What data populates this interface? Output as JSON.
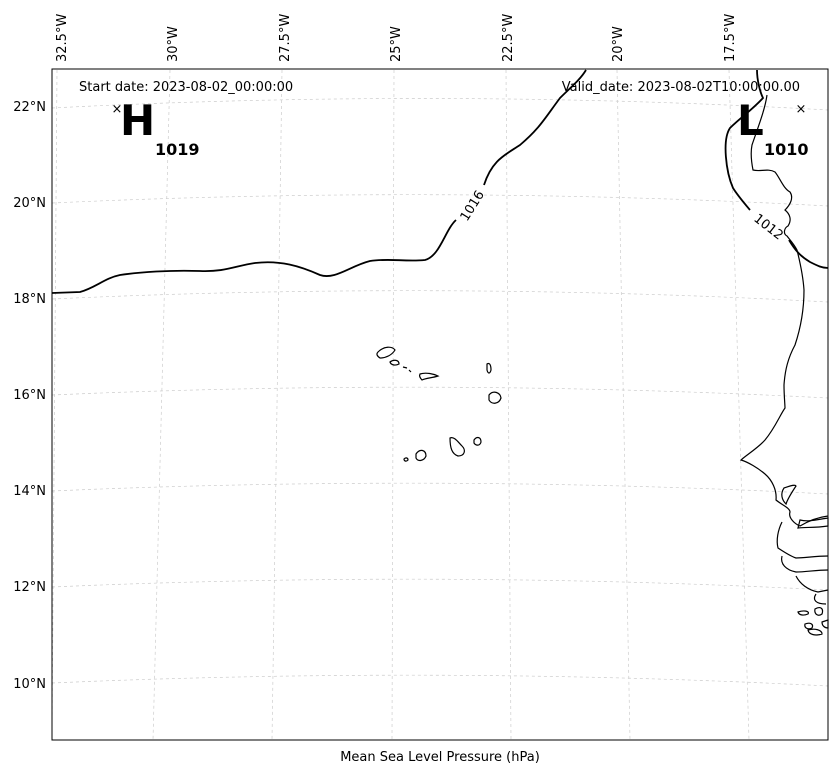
{
  "header": {
    "start_date": "Start date: 2023-08-02_00:00:00",
    "valid_date": "Valid_date: 2023-08-02T10:00:00.00"
  },
  "footer": {
    "caption": "Mean Sea Level Pressure (hPa)"
  },
  "longitude_labels": [
    "32.5°W",
    "30°W",
    "27.5°W",
    "25°W",
    "22.5°W",
    "20°W",
    "17.5°W"
  ],
  "latitude_labels": [
    "22°N",
    "20°N",
    "18°N",
    "16°N",
    "14°N",
    "12°N",
    "10°N"
  ],
  "pressure_centers": {
    "high": {
      "letter": "H",
      "value": "1019",
      "marker": "×"
    },
    "low": {
      "letter": "L",
      "value": "1010",
      "marker": "×"
    }
  },
  "isobars": [
    {
      "label": "1016"
    },
    {
      "label": "1012"
    }
  ],
  "colors": {
    "line": "#000000",
    "grid": "#cccccc",
    "background": "#ffffff"
  }
}
